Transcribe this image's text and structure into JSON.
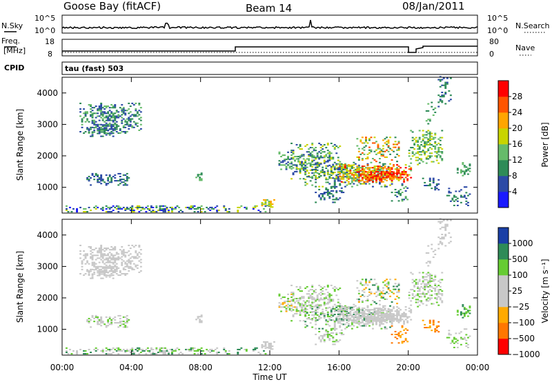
{
  "header": {
    "station": "Goose Bay (fitACF)",
    "beam": "Beam 14",
    "date": "08/Jan/2011"
  },
  "noise_panel": {
    "left_label": "N.Sky",
    "right_label": "N.Search",
    "left_ticks": [
      "10^5",
      "10^0"
    ],
    "right_ticks": [
      "10^5",
      "10^0"
    ]
  },
  "freq_panel": {
    "left_label_1": "Freq.",
    "left_label_2": "[MHz]",
    "right_label": "Nave",
    "left_ticks": [
      "18",
      "8"
    ],
    "right_ticks": [
      "80",
      "0"
    ],
    "cpid_label": "CPID",
    "cpid_text": "tau (fast) 503"
  },
  "colors": {
    "power": [
      "#1a1aff",
      "#2c4aa6",
      "#2e8b57",
      "#66bb6a",
      "#c8d400",
      "#ffa500",
      "#ff5500",
      "#ff0000"
    ],
    "velocity": [
      "#ff0000",
      "#ff7700",
      "#ffaa00",
      "#c8c8c8",
      "#c8c8c8",
      "#66cc33",
      "#2e8b57",
      "#1a3fa6"
    ]
  },
  "chart_data": [
    {
      "type": "heatmap",
      "title": "Power",
      "xlabel": "",
      "ylabel": "Slant Range [km]",
      "x_ticks": [
        "00:00",
        "04:00",
        "08:00",
        "12:00",
        "16:00",
        "20:00",
        "00:00"
      ],
      "y_ticks": [
        "1000",
        "2000",
        "3000",
        "4000"
      ],
      "colorbar_label": "Power [dB]",
      "colorbar_ticks": [
        "4",
        "8",
        "12",
        "16",
        "20",
        "24",
        "28"
      ],
      "xlim": [
        0,
        24
      ],
      "ylim": [
        180,
        4500
      ]
    },
    {
      "type": "heatmap",
      "title": "Velocity",
      "xlabel": "Time UT",
      "ylabel": "Slant Range [km]",
      "x_ticks": [
        "00:00",
        "04:00",
        "08:00",
        "12:00",
        "16:00",
        "20:00",
        "00:00"
      ],
      "y_ticks": [
        "1000",
        "2000",
        "3000",
        "4000"
      ],
      "colorbar_label": "Velocity [m s⁻¹]",
      "colorbar_ticks": [
        "1000",
        "500",
        "100",
        "25",
        "−25",
        "−100",
        "−500",
        "−1000"
      ],
      "xlim": [
        0,
        24
      ],
      "ylim": [
        180,
        4500
      ]
    }
  ]
}
